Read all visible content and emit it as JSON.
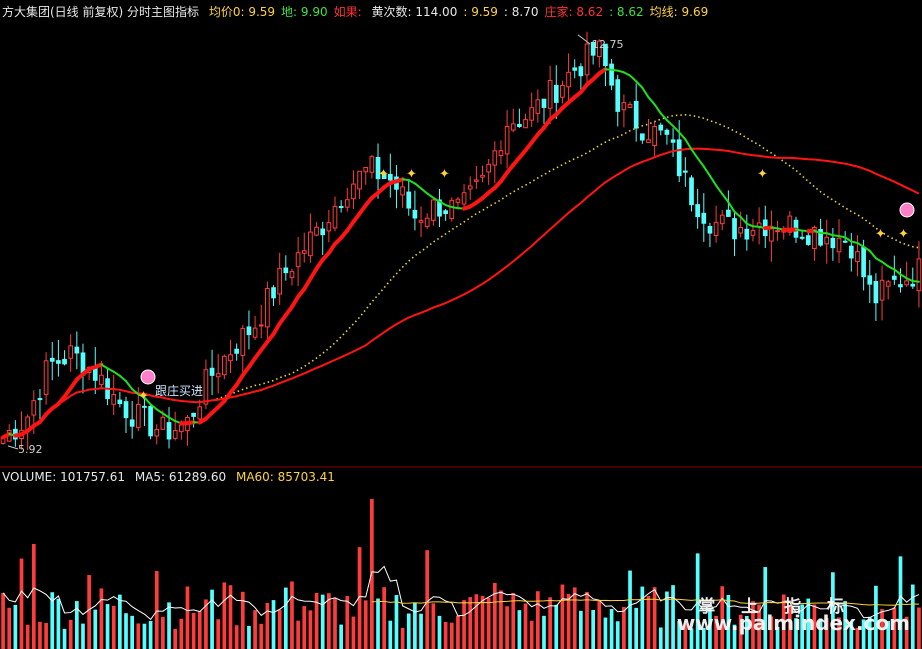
{
  "header": {
    "title": "方大集团(日线 前复权) 分时主图指标",
    "items": [
      {
        "label": "均价0",
        "value": "9.59",
        "color": "#ffd23c"
      },
      {
        "label": "地",
        "value": "9.90",
        "color": "#40e040"
      },
      {
        "label": "如果",
        "value": "",
        "color": "#ff3333"
      },
      {
        "label": "黄次数",
        "value": "114.00",
        "color": "#e8e8e8"
      },
      {
        "label": "",
        "value": "9.59",
        "color": "#ffd23c"
      },
      {
        "label": "",
        "value": "8.70",
        "color": "#e8e8e8"
      },
      {
        "label": "庄家",
        "value": "8.62",
        "color": "#ff3333"
      },
      {
        "label": "",
        "value": "8.62",
        "color": "#40e040"
      },
      {
        "label": "均线",
        "value": "9.69",
        "color": "#ffd23c"
      }
    ]
  },
  "volume_header": {
    "volume": "VOLUME: 101757.61",
    "ma5": "MA5: 61289.60",
    "ma60": "MA60: 85703.41"
  },
  "annotations": {
    "high_label": "12.75",
    "low_label": "5.92",
    "buy_signal": "跟庄买进",
    "watermark_cn": "掌 上 指 标",
    "watermark_url": "www.palmindex.com"
  },
  "chart_data": {
    "type": "candlestick",
    "price_range": [
      5.7,
      13.0
    ],
    "high": 12.75,
    "low": 5.92,
    "colors": {
      "up": "#ff3c3c",
      "down": "#54ffff",
      "ma_red": "#ff1414",
      "ma_green": "#1ee01e",
      "ma_yellow": "#e6d23c",
      "vol_up": "#ff3c3c",
      "vol_down": "#54ffff"
    },
    "series_close_approx": [
      6.0,
      6.3,
      7.2,
      7.4,
      7.1,
      6.6,
      6.3,
      6.1,
      6.2,
      7.0,
      7.5,
      7.9,
      8.6,
      9.1,
      9.6,
      10.2,
      10.5,
      10.3,
      9.7,
      9.9,
      9.8,
      10.3,
      11.3,
      11.4,
      11.8,
      12.2,
      12.5,
      11.5,
      11.2,
      11.0,
      10.1,
      9.6,
      9.5,
      9.6,
      9.6,
      9.5,
      9.4,
      9.3,
      8.3,
      8.6,
      8.8
    ]
  }
}
